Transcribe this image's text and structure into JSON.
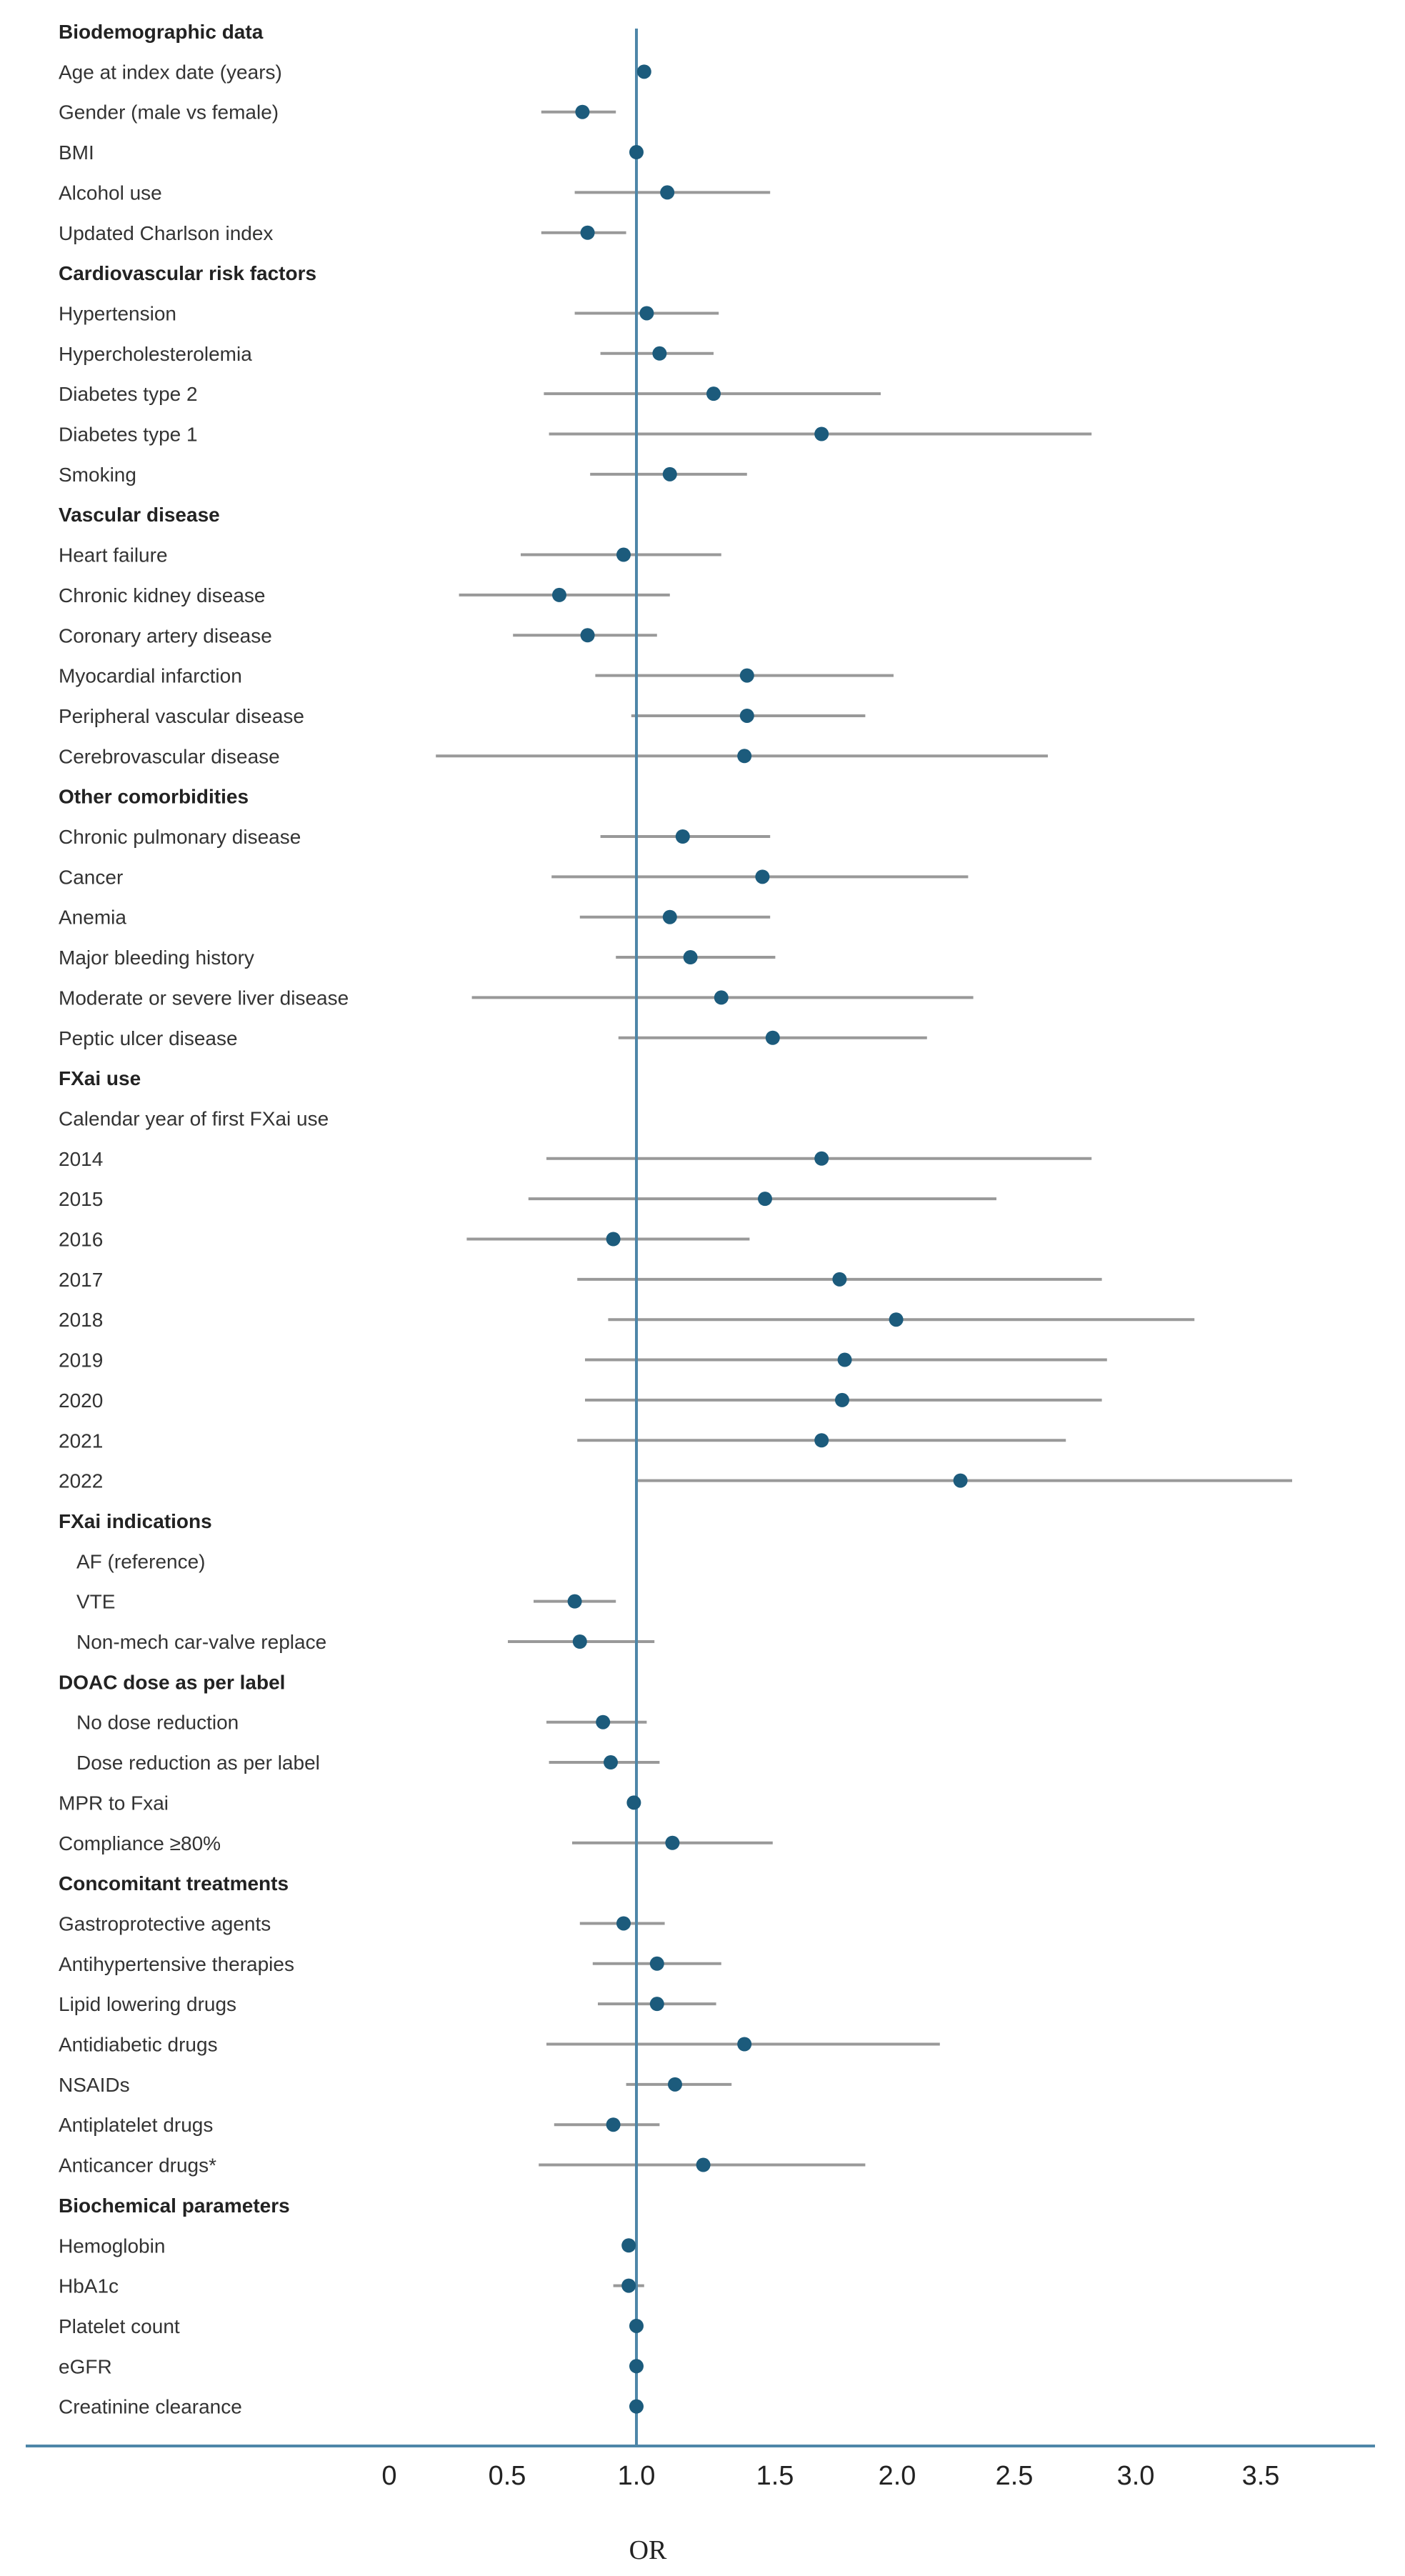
{
  "chart_data": {
    "type": "forest",
    "xlabel": "OR",
    "reference_line": 1.0,
    "colors": {
      "point": "#1c5b7c",
      "ci": "#999999",
      "reference": "#4e86a8",
      "axis": "#4e86a8"
    },
    "ticks": [
      {
        "label": "0",
        "value": 0
      },
      {
        "label": "0.5",
        "value": 0.5
      },
      {
        "label": "1.0",
        "value": 1.0
      },
      {
        "label": "1.5",
        "value": 1.5
      },
      {
        "label": "2.0",
        "value": 2.0
      },
      {
        "label": "2.5",
        "value": 2.5
      },
      {
        "label": "3.0",
        "value": 3.0
      },
      {
        "label": "3.5",
        "value": 3.5
      }
    ],
    "rows": [
      {
        "label": "Biodemographic data",
        "header": true
      },
      {
        "label": "Age at index date (years)",
        "or": 1.03
      },
      {
        "label": "Gender (male vs female)",
        "or": 0.79,
        "lo": 0.63,
        "hi": 0.92
      },
      {
        "label": "BMI",
        "or": 1.0
      },
      {
        "label": "Alcohol use",
        "or": 1.12,
        "lo": 0.76,
        "hi": 1.52
      },
      {
        "label": "Updated Charlson index",
        "or": 0.81,
        "lo": 0.63,
        "hi": 0.96
      },
      {
        "label": "Cardiovascular risk factors",
        "header": true
      },
      {
        "label": "Hypertension",
        "or": 1.04,
        "lo": 0.76,
        "hi": 1.32
      },
      {
        "label": "Hypercholesterolemia",
        "or": 1.09,
        "lo": 0.86,
        "hi": 1.3
      },
      {
        "label": "Diabetes type 2",
        "or": 1.3,
        "lo": 0.64,
        "hi": 1.95
      },
      {
        "label": "Diabetes type 1",
        "or": 1.72,
        "lo": 0.66,
        "hi": 2.77
      },
      {
        "label": "Smoking",
        "or": 1.13,
        "lo": 0.82,
        "hi": 1.43
      },
      {
        "label": "Vascular disease",
        "header": true
      },
      {
        "label": "Heart failure",
        "or": 0.95,
        "lo": 0.55,
        "hi": 1.33
      },
      {
        "label": "Chronic kidney disease",
        "or": 0.7,
        "lo": 0.31,
        "hi": 1.13
      },
      {
        "label": "Coronary artery disease",
        "or": 0.81,
        "lo": 0.52,
        "hi": 1.08
      },
      {
        "label": "Myocardial infarction",
        "or": 1.43,
        "lo": 0.84,
        "hi": 2.0
      },
      {
        "label": "Peripheral vascular disease",
        "or": 1.43,
        "lo": 0.98,
        "hi": 1.89
      },
      {
        "label": "Cerebrovascular disease",
        "or": 1.42,
        "lo": 0.22,
        "hi": 2.6
      },
      {
        "label": "Other comorbidities",
        "header": true
      },
      {
        "label": "Chronic pulmonary disease",
        "or": 1.18,
        "lo": 0.86,
        "hi": 1.52
      },
      {
        "label": "Cancer",
        "or": 1.49,
        "lo": 0.67,
        "hi": 2.29
      },
      {
        "label": "Anemia",
        "or": 1.13,
        "lo": 0.78,
        "hi": 1.52
      },
      {
        "label": "Major bleeding history",
        "or": 1.21,
        "lo": 0.92,
        "hi": 1.54
      },
      {
        "label": "Moderate or severe liver disease",
        "or": 1.33,
        "lo": 0.36,
        "hi": 2.31
      },
      {
        "label": "Peptic ulcer disease",
        "or": 1.53,
        "lo": 0.93,
        "hi": 2.13
      },
      {
        "label": "FXai use",
        "header": true
      },
      {
        "label": "Calendar year of first FXai use"
      },
      {
        "label": "2014",
        "or": 1.72,
        "lo": 0.65,
        "hi": 2.77
      },
      {
        "label": "2015",
        "or": 1.5,
        "lo": 0.58,
        "hi": 2.4
      },
      {
        "label": "2016",
        "or": 0.91,
        "lo": 0.34,
        "hi": 1.44
      },
      {
        "label": "2017",
        "or": 1.79,
        "lo": 0.77,
        "hi": 2.81
      },
      {
        "label": "2018",
        "or": 2.01,
        "lo": 0.89,
        "hi": 3.17
      },
      {
        "label": "2019",
        "or": 1.81,
        "lo": 0.8,
        "hi": 2.83
      },
      {
        "label": "2020",
        "or": 1.8,
        "lo": 0.8,
        "hi": 2.81
      },
      {
        "label": "2021",
        "or": 1.72,
        "lo": 0.77,
        "hi": 2.67
      },
      {
        "label": "2022",
        "or": 2.26,
        "lo": 1.0,
        "hi": 3.55
      },
      {
        "label": "FXai indications",
        "header": true
      },
      {
        "label": "AF (reference)",
        "indent": true
      },
      {
        "label": "VTE",
        "indent": true,
        "or": 0.76,
        "lo": 0.6,
        "hi": 0.92
      },
      {
        "label": "Non-mech car-valve replace",
        "indent": true,
        "or": 0.78,
        "lo": 0.5,
        "hi": 1.07
      },
      {
        "label": "DOAC dose as per label",
        "header": true
      },
      {
        "label": "No dose reduction",
        "indent": true,
        "or": 0.87,
        "lo": 0.65,
        "hi": 1.04
      },
      {
        "label": "Dose reduction as per label",
        "indent": true,
        "or": 0.9,
        "lo": 0.66,
        "hi": 1.09
      },
      {
        "label": "MPR to Fxai",
        "or": 0.99
      },
      {
        "label": "Compliance ≥80%",
        "or": 1.14,
        "lo": 0.75,
        "hi": 1.53
      },
      {
        "label": "Concomitant treatments",
        "header": true
      },
      {
        "label": "Gastroprotective agents",
        "or": 0.95,
        "lo": 0.78,
        "hi": 1.11
      },
      {
        "label": "Antihypertensive therapies",
        "or": 1.08,
        "lo": 0.83,
        "hi": 1.33
      },
      {
        "label": "Lipid lowering drugs",
        "or": 1.08,
        "lo": 0.85,
        "hi": 1.31
      },
      {
        "label": "Antidiabetic drugs",
        "or": 1.42,
        "lo": 0.65,
        "hi": 2.18
      },
      {
        "label": "NSAIDs",
        "or": 1.15,
        "lo": 0.96,
        "hi": 1.37
      },
      {
        "label": "Antiplatelet drugs",
        "or": 0.91,
        "lo": 0.68,
        "hi": 1.09
      },
      {
        "label": "Anticancer drugs*",
        "or": 1.26,
        "lo": 0.62,
        "hi": 1.89
      },
      {
        "label": "Biochemical parameters",
        "header": true
      },
      {
        "label": "Hemoglobin",
        "or": 0.97
      },
      {
        "label": "HbA1c",
        "or": 0.97,
        "lo": 0.91,
        "hi": 1.03
      },
      {
        "label": "Platelet count",
        "or": 1.0
      },
      {
        "label": "eGFR",
        "or": 1.0
      },
      {
        "label": "Creatinine clearance",
        "or": 1.0
      }
    ]
  }
}
